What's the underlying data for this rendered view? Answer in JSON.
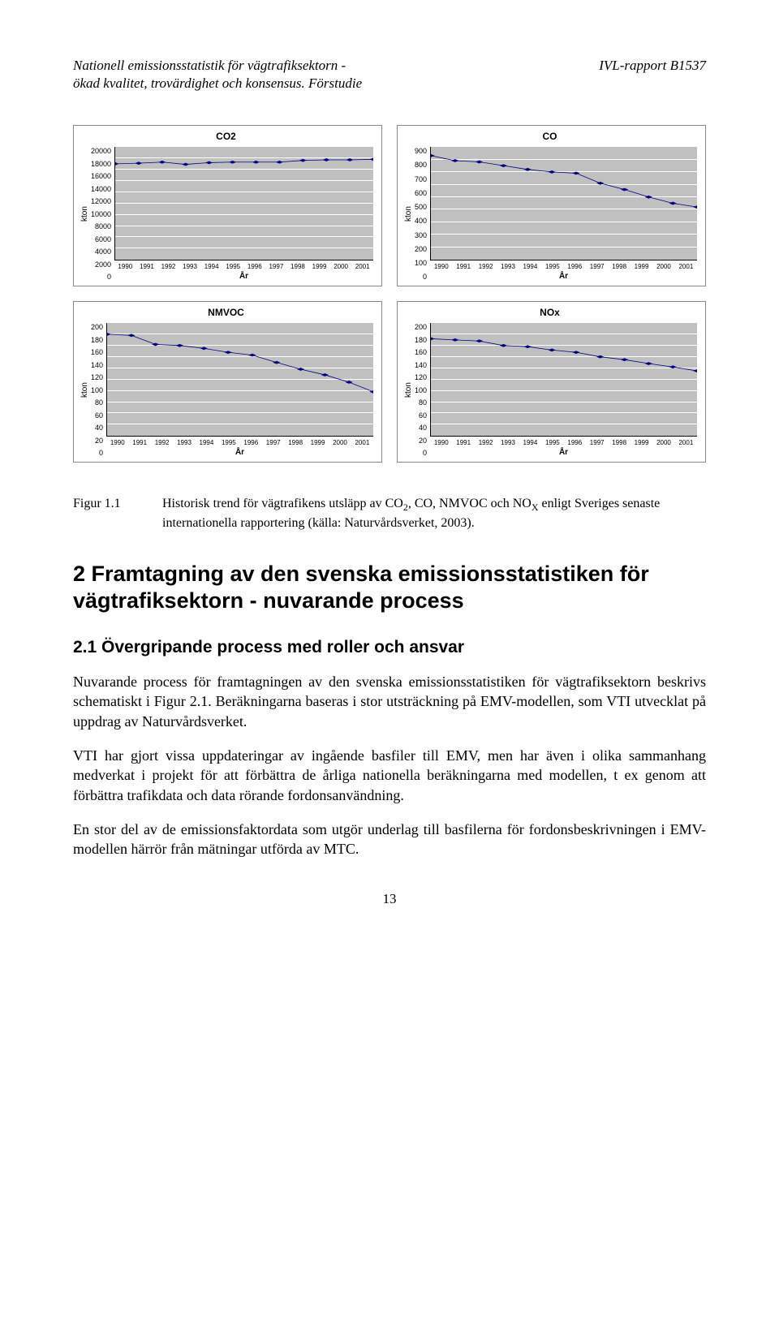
{
  "header": {
    "left_line1": "Nationell emissionsstatistik för vägtrafiksektorn -",
    "left_line2": "ökad kvalitet, trovärdighet och  konsensus. Förstudie",
    "right": "IVL-rapport B1537"
  },
  "charts": [
    {
      "title": "CO2",
      "ylabel": "kton",
      "xlabel": "År",
      "ymax": 20000,
      "ystep": 2000,
      "years": [
        1990,
        1991,
        1992,
        1993,
        1994,
        1995,
        1996,
        1997,
        1998,
        1999,
        2000,
        2001
      ],
      "values": [
        17000,
        17100,
        17300,
        16900,
        17200,
        17300,
        17300,
        17300,
        17600,
        17700,
        17700,
        17800
      ],
      "line_color": "#000080",
      "marker_color": "#000080",
      "background": "#c0c0c0",
      "grid_color": "#ffffff"
    },
    {
      "title": "CO",
      "ylabel": "kton",
      "xlabel": "År",
      "ymax": 900,
      "ystep": 100,
      "years": [
        1990,
        1991,
        1992,
        1993,
        1994,
        1995,
        1996,
        1997,
        1998,
        1999,
        2000,
        2001
      ],
      "values": [
        830,
        790,
        780,
        750,
        720,
        700,
        690,
        610,
        560,
        500,
        450,
        420
      ],
      "line_color": "#000080",
      "marker_color": "#000080",
      "background": "#c0c0c0",
      "grid_color": "#ffffff"
    },
    {
      "title": "NMVOC",
      "ylabel": "kton",
      "xlabel": "År",
      "ymax": 200,
      "ystep": 20,
      "years": [
        1990,
        1991,
        1992,
        1993,
        1994,
        1995,
        1996,
        1997,
        1998,
        1999,
        2000,
        2001
      ],
      "values": [
        180,
        178,
        162,
        160,
        155,
        148,
        143,
        130,
        118,
        108,
        95,
        78
      ],
      "line_color": "#000080",
      "marker_color": "#000080",
      "background": "#c0c0c0",
      "grid_color": "#ffffff"
    },
    {
      "title": "NOx",
      "ylabel": "kton",
      "xlabel": "År",
      "ymax": 200,
      "ystep": 20,
      "years": [
        1990,
        1991,
        1992,
        1993,
        1994,
        1995,
        1996,
        1997,
        1998,
        1999,
        2000,
        2001
      ],
      "values": [
        172,
        170,
        168,
        160,
        158,
        152,
        148,
        140,
        135,
        128,
        122,
        115
      ],
      "line_color": "#000080",
      "marker_color": "#000080",
      "background": "#c0c0c0",
      "grid_color": "#ffffff"
    }
  ],
  "figure": {
    "label": "Figur 1.1",
    "text_before_sub1": "Historisk trend för vägtrafikens utsläpp av CO",
    "sub1": "2",
    "text_mid": ", CO, NMVOC och NO",
    "sub2": "X",
    "text_after": " enligt Sveriges senaste internationella rapportering (källa: Naturvårdsverket, 2003)."
  },
  "section_heading": "2  Framtagning av den svenska emissionsstatistiken för vägtrafiksektorn - nuvarande process",
  "subsection_heading": "2.1  Övergripande process med roller och ansvar",
  "para1": "Nuvarande process för framtagningen av den svenska emissionsstatistiken för vägtrafiksektorn beskrivs schematiskt i Figur 2.1. Beräkningarna baseras i stor utsträckning på EMV-modellen, som VTI utvecklat på uppdrag av Naturvårdsverket.",
  "para2": "VTI har gjort vissa uppdateringar av ingående basfiler till EMV, men har även i olika sammanhang medverkat i projekt för att förbättra de årliga nationella beräkningarna med modellen, t ex genom att förbättra trafikdata och data rörande fordonsanvändning.",
  "para3": "En stor del av de emissionsfaktordata som utgör underlag till basfilerna för fordonsbeskrivningen i EMV-modellen härrör från mätningar utförda av MTC.",
  "page_number": "13"
}
